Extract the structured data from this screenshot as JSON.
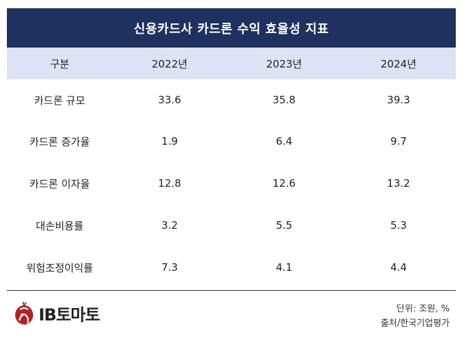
{
  "title": "신용카드사 카드론 수익 효율성 지표",
  "table": {
    "headers": [
      "구분",
      "2022년",
      "2023년",
      "2024년"
    ],
    "rows": [
      [
        "카드론 규모",
        "33.6",
        "35.8",
        "39.3"
      ],
      [
        "카드론 증가율",
        "1.9",
        "6.4",
        "9.7"
      ],
      [
        "카드론 이자율",
        "12.8",
        "12.6",
        "13.2"
      ],
      [
        "대손비용률",
        "3.2",
        "5.5",
        "5.3"
      ],
      [
        "위험조정이익률",
        "7.3",
        "4.1",
        "4.4"
      ]
    ]
  },
  "logo": {
    "text": "IB토마토"
  },
  "footnote": {
    "unit": "단위: 조원, %",
    "source": "출처/한국기업평가"
  },
  "colors": {
    "title_bg": "#1e3160",
    "header_bg": "#dde3f4",
    "logo_red": "#b52025"
  }
}
